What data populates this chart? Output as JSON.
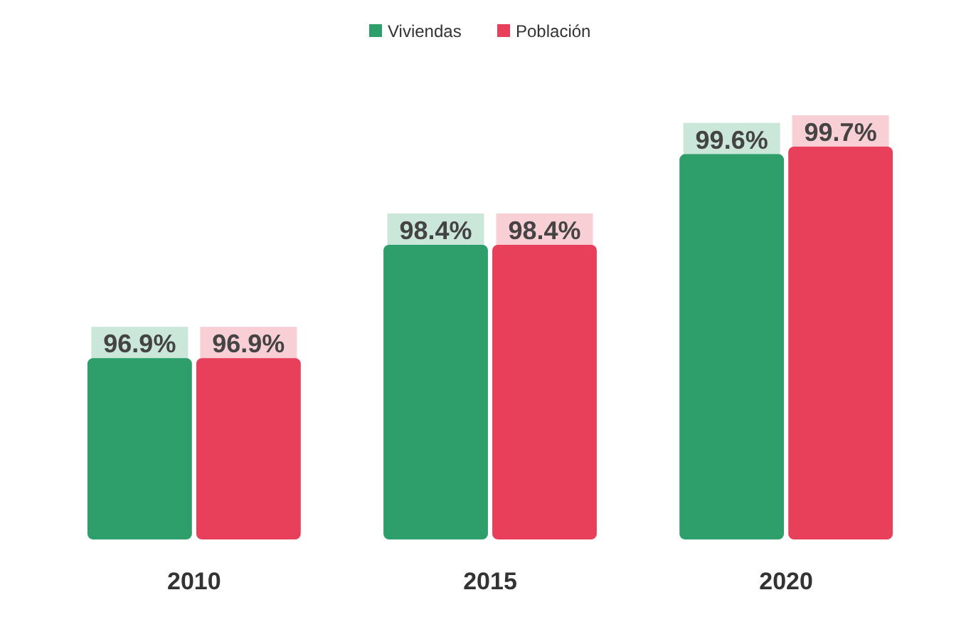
{
  "chart_data": {
    "type": "bar",
    "categories": [
      "2010",
      "2015",
      "2020"
    ],
    "series": [
      {
        "name": "Viviendas",
        "color": "#2e9e6a",
        "values": [
          96.9,
          98.4,
          99.6
        ],
        "value_labels": [
          "96.9%",
          "98.4%",
          "99.6%"
        ]
      },
      {
        "name": "Población",
        "color": "#e8405a",
        "values": [
          96.9,
          98.4,
          99.7
        ],
        "value_labels": [
          "96.9%",
          "98.4%",
          "99.7%"
        ]
      }
    ],
    "ylim": [
      94.5,
      99.7
    ],
    "legend": "top",
    "tick_labels": "x"
  }
}
